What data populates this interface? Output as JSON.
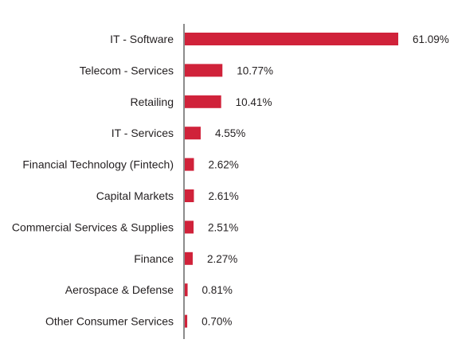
{
  "chart_data": {
    "type": "bar",
    "orientation": "horizontal",
    "categories": [
      "IT - Software",
      "Telecom - Services",
      "Retailing",
      "IT - Services",
      "Financial Technology (Fintech)",
      "Capital Markets",
      "Commercial Services & Supplies",
      "Finance",
      "Aerospace & Defense",
      "Other Consumer Services"
    ],
    "values": [
      61.09,
      10.77,
      10.41,
      4.55,
      2.62,
      2.61,
      2.51,
      2.27,
      0.81,
      0.7
    ],
    "value_labels": [
      "61.09%",
      "10.77%",
      "10.41%",
      "4.55%",
      "2.62%",
      "2.61%",
      "2.51%",
      "2.27%",
      "0.81%",
      "0.70%"
    ],
    "title": "",
    "xlabel": "",
    "ylabel": "",
    "xlim": [
      0,
      61.09
    ],
    "grid": false,
    "legend": "none",
    "colors": {
      "bar": "#d0223a",
      "axis": "#8c8c8c",
      "text": "#231f20"
    }
  }
}
